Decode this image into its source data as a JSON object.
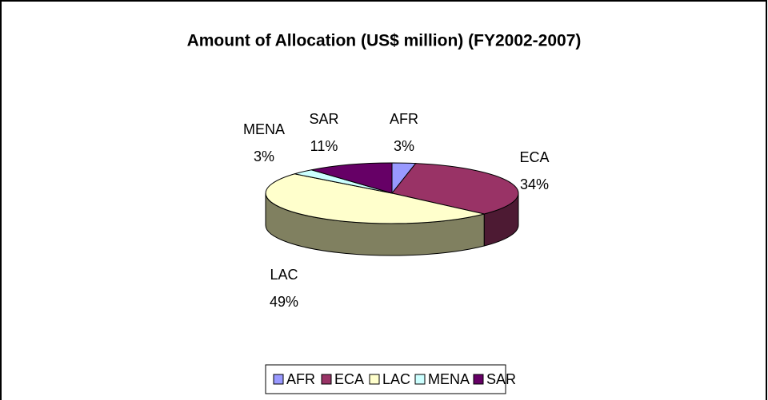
{
  "chart_data": {
    "type": "pie3d",
    "title": "Amount of Allocation (US$ million) (FY2002-2007)",
    "categories": [
      "AFR",
      "ECA",
      "LAC",
      "MENA",
      "SAR"
    ],
    "values": [
      3,
      34,
      49,
      3,
      11
    ],
    "value_labels": [
      "3%",
      "34%",
      "49%",
      "3%",
      "11%"
    ],
    "colors": [
      "#9999ff",
      "#993366",
      "#ffffcc",
      "#ccffff",
      "#660066"
    ],
    "side_colors": [
      "#4d4d80",
      "#4d1a33",
      "#808060",
      "#668080",
      "#330033"
    ],
    "legend": "bottom"
  }
}
